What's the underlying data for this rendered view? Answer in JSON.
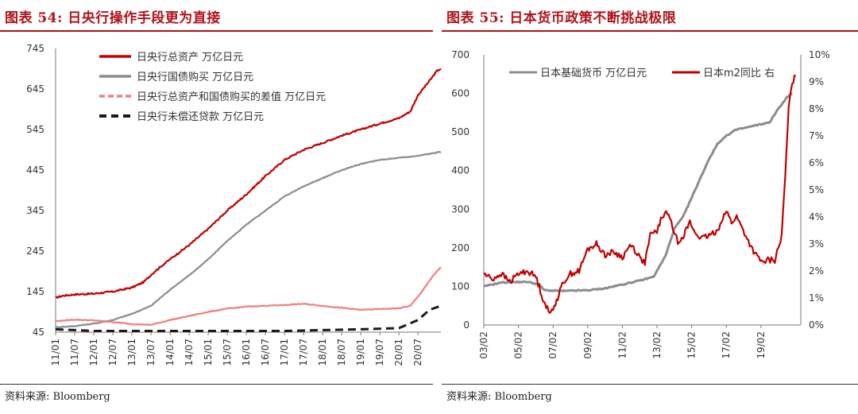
{
  "left": {
    "title": "图表 54: 日央行操作手段更为直接",
    "source": "资料来源: Bloomberg",
    "chart_data": {
      "type": "line",
      "ylim": [
        45,
        745
      ],
      "y_ticks": [
        45,
        145,
        245,
        345,
        445,
        545,
        645,
        745
      ],
      "x_ticks": [
        "11/01",
        "11/07",
        "12/01",
        "12/07",
        "13/01",
        "13/07",
        "14/01",
        "14/07",
        "15/01",
        "15/07",
        "16/01",
        "16/07",
        "17/01",
        "17/07",
        "18/01",
        "18/07",
        "19/01",
        "19/07",
        "20/01",
        "20/07"
      ],
      "x_range": [
        2011.0,
        2021.1
      ],
      "legend_placement": "top-left",
      "series": [
        {
          "name": "日央行总资产 万亿日元",
          "color": "#c00000",
          "style": "solid",
          "points": [
            [
              2011.0,
              130
            ],
            [
              2011.2,
              135
            ],
            [
              2011.5,
              138
            ],
            [
              2012.0,
              140
            ],
            [
              2012.5,
              145
            ],
            [
              2013.0,
              155
            ],
            [
              2013.3,
              168
            ],
            [
              2013.6,
              195
            ],
            [
              2014.0,
              225
            ],
            [
              2014.5,
              260
            ],
            [
              2015.0,
              300
            ],
            [
              2015.5,
              345
            ],
            [
              2016.0,
              385
            ],
            [
              2016.5,
              430
            ],
            [
              2017.0,
              470
            ],
            [
              2017.5,
              495
            ],
            [
              2018.0,
              512
            ],
            [
              2018.5,
              530
            ],
            [
              2019.0,
              545
            ],
            [
              2019.5,
              560
            ],
            [
              2020.0,
              573
            ],
            [
              2020.3,
              590
            ],
            [
              2020.5,
              630
            ],
            [
              2020.8,
              665
            ],
            [
              2021.0,
              690
            ],
            [
              2021.1,
              695
            ]
          ]
        },
        {
          "name": "日央行国债购买 万亿日元",
          "color": "#8c8c8c",
          "style": "solid",
          "points": [
            [
              2011.0,
              57
            ],
            [
              2011.5,
              60
            ],
            [
              2012.0,
              66
            ],
            [
              2012.5,
              75
            ],
            [
              2013.0,
              90
            ],
            [
              2013.5,
              110
            ],
            [
              2014.0,
              150
            ],
            [
              2014.5,
              185
            ],
            [
              2015.0,
              225
            ],
            [
              2015.5,
              270
            ],
            [
              2016.0,
              310
            ],
            [
              2016.5,
              345
            ],
            [
              2017.0,
              380
            ],
            [
              2017.5,
              405
            ],
            [
              2018.0,
              425
            ],
            [
              2018.5,
              445
            ],
            [
              2019.0,
              460
            ],
            [
              2019.5,
              470
            ],
            [
              2020.0,
              475
            ],
            [
              2020.5,
              480
            ],
            [
              2021.1,
              490
            ]
          ]
        },
        {
          "name": "日央行总资产和国债购买的差值 万亿日元",
          "color": "#f08080",
          "style": "solid",
          "points": [
            [
              2011.0,
              72
            ],
            [
              2011.5,
              76
            ],
            [
              2012.0,
              74
            ],
            [
              2012.5,
              70
            ],
            [
              2013.0,
              65
            ],
            [
              2013.5,
              63
            ],
            [
              2014.0,
              75
            ],
            [
              2014.5,
              85
            ],
            [
              2015.0,
              95
            ],
            [
              2015.5,
              103
            ],
            [
              2016.0,
              108
            ],
            [
              2016.5,
              110
            ],
            [
              2017.0,
              112
            ],
            [
              2017.5,
              115
            ],
            [
              2018.0,
              110
            ],
            [
              2018.5,
              105
            ],
            [
              2019.0,
              100
            ],
            [
              2019.5,
              102
            ],
            [
              2020.0,
              104
            ],
            [
              2020.3,
              110
            ],
            [
              2020.6,
              145
            ],
            [
              2020.9,
              185
            ],
            [
              2021.1,
              205
            ]
          ]
        },
        {
          "name": "日央行未偿还贷款 万亿日元",
          "color": "#1a1a1a",
          "style": "dashed",
          "points": [
            [
              2011.0,
              52
            ],
            [
              2011.5,
              50
            ],
            [
              2012.0,
              48
            ],
            [
              2017.0,
              48
            ],
            [
              2018.0,
              50
            ],
            [
              2019.0,
              52
            ],
            [
              2020.0,
              55
            ],
            [
              2020.5,
              75
            ],
            [
              2020.8,
              100
            ],
            [
              2021.1,
              110
            ]
          ]
        }
      ]
    }
  },
  "right": {
    "title": "图表 55: 日本货币政策不断挑战极限",
    "source": "资料来源: Bloomberg",
    "chart_data": {
      "type": "line",
      "ylim": [
        0,
        700
      ],
      "y_ticks": [
        0,
        100,
        200,
        300,
        400,
        500,
        600,
        700
      ],
      "y2lim": [
        0,
        10
      ],
      "y2_ticks": [
        "0%",
        "1%",
        "2%",
        "3%",
        "4%",
        "5%",
        "6%",
        "7%",
        "8%",
        "9%",
        "10%"
      ],
      "x_ticks": [
        "03/02",
        "05/02",
        "07/02",
        "09/02",
        "11/02",
        "13/02",
        "15/02",
        "17/02",
        "19/02"
      ],
      "x_range": [
        2003.0,
        2021.3
      ],
      "legend_placement": "top",
      "series": [
        {
          "name": "日本基础货币 万亿日元",
          "axis": "left",
          "color": "#8c8c8c",
          "points": [
            [
              2003.0,
              100
            ],
            [
              2004.0,
              110
            ],
            [
              2005.5,
              112
            ],
            [
              2006.2,
              105
            ],
            [
              2006.5,
              90
            ],
            [
              2007.5,
              88
            ],
            [
              2009.0,
              90
            ],
            [
              2010.0,
              95
            ],
            [
              2011.0,
              105
            ],
            [
              2012.0,
              115
            ],
            [
              2012.8,
              125
            ],
            [
              2013.5,
              180
            ],
            [
              2014.0,
              250
            ],
            [
              2014.5,
              280
            ],
            [
              2015.0,
              330
            ],
            [
              2015.5,
              380
            ],
            [
              2016.0,
              430
            ],
            [
              2016.5,
              470
            ],
            [
              2017.0,
              490
            ],
            [
              2017.5,
              505
            ],
            [
              2018.0,
              510
            ],
            [
              2018.5,
              515
            ],
            [
              2019.0,
              520
            ],
            [
              2019.5,
              525
            ],
            [
              2020.0,
              560
            ],
            [
              2020.5,
              590
            ],
            [
              2020.8,
              600
            ]
          ]
        },
        {
          "name": "日本m2同比 右",
          "axis": "right",
          "color": "#c00000",
          "points": [
            [
              2003.0,
              1.9
            ],
            [
              2003.5,
              1.7
            ],
            [
              2004.0,
              1.9
            ],
            [
              2004.5,
              1.6
            ],
            [
              2005.0,
              1.9
            ],
            [
              2005.5,
              2.0
            ],
            [
              2006.0,
              1.8
            ],
            [
              2006.4,
              1.0
            ],
            [
              2006.8,
              0.4
            ],
            [
              2007.2,
              0.9
            ],
            [
              2007.6,
              1.6
            ],
            [
              2008.0,
              1.9
            ],
            [
              2008.5,
              2.0
            ],
            [
              2009.0,
              2.8
            ],
            [
              2009.5,
              3.0
            ],
            [
              2010.0,
              2.6
            ],
            [
              2010.5,
              2.7
            ],
            [
              2011.0,
              2.5
            ],
            [
              2011.5,
              3.0
            ],
            [
              2011.8,
              2.7
            ],
            [
              2012.0,
              2.5
            ],
            [
              2012.3,
              2.3
            ],
            [
              2012.6,
              3.3
            ],
            [
              2013.0,
              3.5
            ],
            [
              2013.3,
              4.0
            ],
            [
              2013.6,
              4.2
            ],
            [
              2013.9,
              3.6
            ],
            [
              2014.2,
              3.1
            ],
            [
              2014.5,
              3.3
            ],
            [
              2014.9,
              3.8
            ],
            [
              2015.2,
              3.4
            ],
            [
              2015.6,
              3.2
            ],
            [
              2016.0,
              3.3
            ],
            [
              2016.5,
              3.5
            ],
            [
              2016.8,
              4.0
            ],
            [
              2017.0,
              4.2
            ],
            [
              2017.3,
              3.8
            ],
            [
              2017.6,
              4.0
            ],
            [
              2017.9,
              3.6
            ],
            [
              2018.2,
              3.2
            ],
            [
              2018.5,
              2.8
            ],
            [
              2018.8,
              2.5
            ],
            [
              2019.1,
              2.3
            ],
            [
              2019.4,
              2.4
            ],
            [
              2019.8,
              2.4
            ],
            [
              2020.2,
              3.3
            ],
            [
              2020.4,
              5.5
            ],
            [
              2020.6,
              8.0
            ],
            [
              2020.8,
              9.0
            ],
            [
              2021.0,
              9.2
            ]
          ]
        }
      ]
    }
  }
}
